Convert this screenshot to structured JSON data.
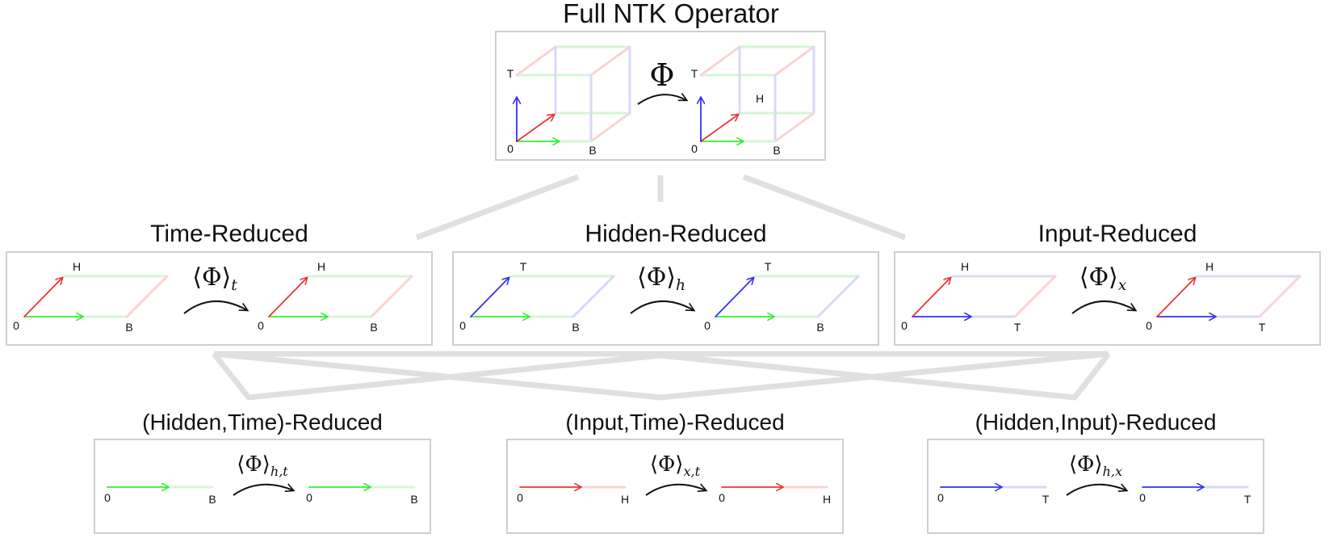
{
  "colors": {
    "red": "#ee3333",
    "green": "#33ee33",
    "blue": "#3333ee",
    "pale_red": "#fbd3d3",
    "pale_green": "#d4f7d4",
    "pale_blue": "#d9d9f7",
    "connector": "#e0e0e0",
    "frame": "#cfcfcf"
  },
  "full": {
    "title": "Full NTK Operator",
    "op_symbol": "Φ",
    "axis_labels": {
      "origin": "0",
      "t": "T",
      "b": "B",
      "h": "H"
    }
  },
  "single": [
    {
      "title": "Time-Reduced",
      "op_main": "⟨Φ⟩",
      "op_sub": "t",
      "labels": {
        "origin": "0",
        "diag": "H",
        "horiz": "B"
      }
    },
    {
      "title": "Hidden-Reduced",
      "op_main": "⟨Φ⟩",
      "op_sub": "h",
      "labels": {
        "origin": "0",
        "diag": "T",
        "horiz": "B"
      }
    },
    {
      "title": "Input-Reduced",
      "op_main": "⟨Φ⟩",
      "op_sub": "x",
      "labels": {
        "origin": "0",
        "diag": "H",
        "horiz": "T"
      }
    }
  ],
  "double": [
    {
      "title": "(Hidden,Time)-Reduced",
      "op_main": "⟨Φ⟩",
      "op_sub": "h,t",
      "labels": {
        "origin": "0",
        "end": "B"
      }
    },
    {
      "title": "(Input,Time)-Reduced",
      "op_main": "⟨Φ⟩",
      "op_sub": "x,t",
      "labels": {
        "origin": "0",
        "end": "H"
      }
    },
    {
      "title": "(Hidden,Input)-Reduced",
      "op_main": "⟨Φ⟩",
      "op_sub": "h,x",
      "labels": {
        "origin": "0",
        "end": "T"
      }
    }
  ]
}
